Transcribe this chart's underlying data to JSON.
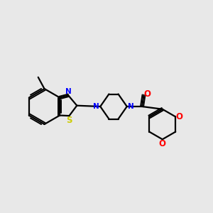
{
  "background_color": "#e8e8e8",
  "bond_color": "#000000",
  "nitrogen_color": "#0000ff",
  "sulfur_color": "#cccc00",
  "oxygen_color": "#ff0000",
  "figsize": [
    3.0,
    3.0
  ],
  "dpi": 100,
  "xlim": [
    0,
    12
  ],
  "ylim": [
    0,
    12
  ]
}
